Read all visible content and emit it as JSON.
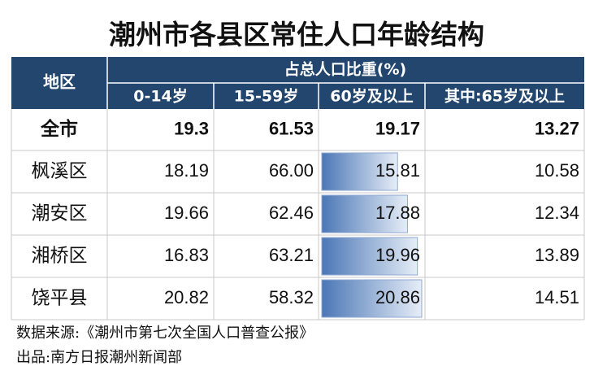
{
  "title": "潮州市各县区常住人口年龄结构",
  "table": {
    "header": {
      "region": "地区",
      "group": "占总人口比重(%)",
      "columns": [
        "0-14岁",
        "15-59岁",
        "60岁及以上",
        "其中:65岁及以上"
      ]
    },
    "rows": [
      [
        "全市",
        "19.3",
        "61.53",
        "19.17",
        "13.27"
      ],
      [
        "枫溪区",
        "18.19",
        "66.00",
        "15.81",
        "10.58"
      ],
      [
        "潮安区",
        "19.66",
        "62.46",
        "17.88",
        "12.34"
      ],
      [
        "湘桥区",
        "16.83",
        "63.21",
        "19.96",
        "13.89"
      ],
      [
        "饶平县",
        "20.82",
        "58.32",
        "20.86",
        "14.51"
      ]
    ]
  },
  "footer": {
    "source": "数据来源:《潮州市第七次全国人口普查公报》",
    "producer": "出品:南方日报潮州新闻部"
  }
}
